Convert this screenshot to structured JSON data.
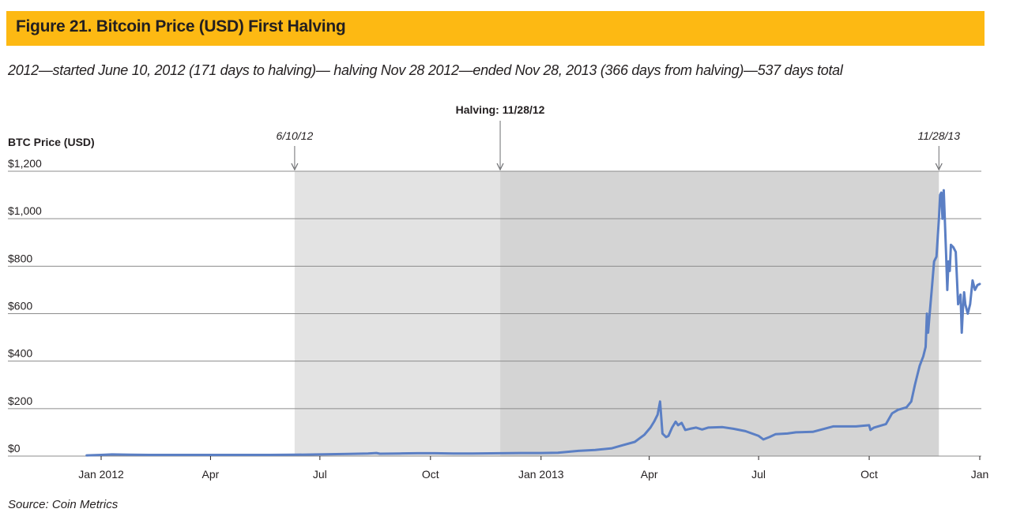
{
  "title": "Figure 21. Bitcoin Price (USD) First Halving",
  "subtitle": "2012—started June 10, 2012 (171 days to halving)— halving Nov 28 2012—ended Nov 28, 2013 (366 days from halving)—537 days total",
  "source": "Source: Coin Metrics",
  "colors": {
    "title_bar": "#fdb913",
    "series": "#5b7fc4",
    "shade_pre_halving": "#e3e3e3",
    "shade_post_halving": "#d4d4d4",
    "grid": "#8c8c8c"
  },
  "chart_data": {
    "type": "line",
    "title": "",
    "xlabel": "",
    "ylabel": "BTC Price (USD)",
    "ylim": [
      0,
      1200
    ],
    "xlim": [
      "2011-12-17",
      "2014-01-02"
    ],
    "grid": "horizontal",
    "y_ticks": [
      {
        "value": 0,
        "label": "$0"
      },
      {
        "value": 200,
        "label": "$200"
      },
      {
        "value": 400,
        "label": "$400"
      },
      {
        "value": 600,
        "label": "$600"
      },
      {
        "value": 800,
        "label": "$800"
      },
      {
        "value": 1000,
        "label": "$1,000"
      },
      {
        "value": 1200,
        "label": "$1,200"
      }
    ],
    "x_ticks": [
      {
        "date": "2012-01-01",
        "label": "Jan 2012"
      },
      {
        "date": "2012-04-01",
        "label": "Apr"
      },
      {
        "date": "2012-07-01",
        "label": "Jul"
      },
      {
        "date": "2012-10-01",
        "label": "Oct"
      },
      {
        "date": "2013-01-01",
        "label": "Jan 2013"
      },
      {
        "date": "2013-04-01",
        "label": "Apr"
      },
      {
        "date": "2013-07-01",
        "label": "Jul"
      },
      {
        "date": "2013-10-01",
        "label": "Oct"
      },
      {
        "date": "2014-01-01",
        "label": "Jan"
      }
    ],
    "shaded_regions": [
      {
        "start": "2012-06-10",
        "end": "2012-11-28"
      },
      {
        "start": "2012-11-28",
        "end": "2013-11-28"
      }
    ],
    "annotations": [
      {
        "date": "2012-06-10",
        "label": "6/10/12"
      },
      {
        "date": "2012-11-28",
        "label": "Halving: 11/28/12"
      },
      {
        "date": "2013-11-28",
        "label": "11/28/13"
      }
    ],
    "series": [
      {
        "x": [
          "2011-12-20",
          "2012-01-01",
          "2012-01-10",
          "2012-01-25",
          "2012-02-10",
          "2012-03-01",
          "2012-03-20",
          "2012-04-10",
          "2012-05-01",
          "2012-05-20",
          "2012-06-10",
          "2012-06-25",
          "2012-07-10",
          "2012-07-25",
          "2012-08-10",
          "2012-08-17",
          "2012-08-20",
          "2012-09-05",
          "2012-09-20",
          "2012-10-05",
          "2012-10-20",
          "2012-11-05",
          "2012-11-28",
          "2012-12-15",
          "2013-01-01",
          "2013-01-15",
          "2013-02-01",
          "2013-02-15",
          "2013-03-01",
          "2013-03-10",
          "2013-03-20",
          "2013-03-28",
          "2013-04-02",
          "2013-04-05",
          "2013-04-08",
          "2013-04-10",
          "2013-04-12",
          "2013-04-15",
          "2013-04-17",
          "2013-04-20",
          "2013-04-23",
          "2013-04-25",
          "2013-04-28",
          "2013-05-01",
          "2013-05-05",
          "2013-05-10",
          "2013-05-15",
          "2013-05-20",
          "2013-06-01",
          "2013-06-10",
          "2013-06-20",
          "2013-07-01",
          "2013-07-05",
          "2013-07-10",
          "2013-07-15",
          "2013-07-25",
          "2013-08-01",
          "2013-08-15",
          "2013-09-01",
          "2013-09-10",
          "2013-09-20",
          "2013-10-01",
          "2013-10-02",
          "2013-10-05",
          "2013-10-15",
          "2013-10-20",
          "2013-10-25",
          "2013-11-01",
          "2013-11-05",
          "2013-11-08",
          "2013-11-10",
          "2013-11-12",
          "2013-11-15",
          "2013-11-17",
          "2013-11-18",
          "2013-11-19",
          "2013-11-20",
          "2013-11-22",
          "2013-11-24",
          "2013-11-26",
          "2013-11-28",
          "2013-11-29",
          "2013-11-30",
          "2013-12-01",
          "2013-12-02",
          "2013-12-04",
          "2013-12-05",
          "2013-12-06",
          "2013-12-07",
          "2013-12-08",
          "2013-12-10",
          "2013-12-12",
          "2013-12-14",
          "2013-12-16",
          "2013-12-17",
          "2013-12-18",
          "2013-12-19",
          "2013-12-20",
          "2013-12-22",
          "2013-12-24",
          "2013-12-26",
          "2013-12-28",
          "2013-12-30",
          "2014-01-01"
        ],
        "values": [
          3,
          5,
          7,
          6,
          5,
          5,
          5,
          5,
          5,
          5,
          5.5,
          6.5,
          8,
          9,
          11,
          13,
          10,
          11,
          12,
          12,
          11,
          11,
          12,
          13,
          13,
          14,
          22,
          26,
          33,
          46,
          60,
          90,
          120,
          145,
          175,
          230,
          95,
          80,
          85,
          120,
          145,
          130,
          140,
          110,
          115,
          120,
          112,
          120,
          122,
          115,
          105,
          85,
          70,
          80,
          92,
          95,
          100,
          102,
          125,
          125,
          125,
          130,
          110,
          120,
          135,
          180,
          195,
          205,
          230,
          300,
          340,
          380,
          420,
          460,
          600,
          520,
          580,
          700,
          820,
          840,
          1000,
          1100,
          1110,
          1000,
          1120,
          850,
          700,
          820,
          780,
          890,
          880,
          860,
          640,
          680,
          520,
          620,
          690,
          640,
          600,
          640,
          740,
          700,
          720,
          725
        ]
      }
    ]
  }
}
